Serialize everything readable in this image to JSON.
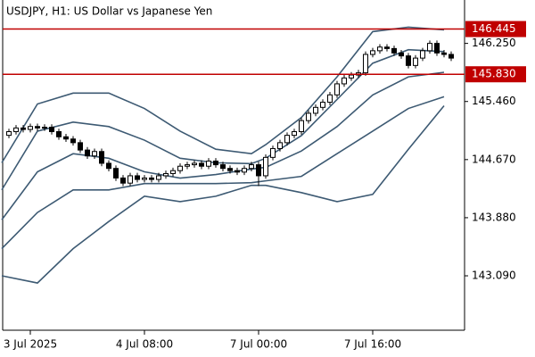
{
  "chart_data": {
    "type": "candlestick",
    "title": "USDJPY, H1:  US Dollar vs Japanese Yen",
    "categories": [
      null,
      null,
      null,
      "3 Jul 2025",
      null,
      null,
      null,
      null,
      null,
      null,
      null,
      null,
      null,
      null,
      null,
      null,
      null,
      null,
      null,
      "4 Jul 08:00",
      null,
      null,
      null,
      null,
      null,
      null,
      null,
      null,
      null,
      null,
      null,
      null,
      null,
      null,
      null,
      "7 Jul 00:00",
      null,
      null,
      null,
      null,
      null,
      null,
      null,
      null,
      null,
      null,
      null,
      null,
      null,
      null,
      null,
      "7 Jul 16:00",
      null,
      null,
      null,
      null,
      null,
      null,
      null,
      null,
      null,
      null,
      null
    ],
    "open": [
      145.0,
      145.05,
      145.1,
      145.08,
      145.12,
      145.1,
      145.11,
      145.05,
      144.98,
      144.95,
      144.9,
      144.8,
      144.72,
      144.78,
      144.62,
      144.55,
      144.42,
      144.35,
      144.45,
      144.4,
      144.42,
      144.4,
      144.45,
      144.48,
      144.52,
      144.58,
      144.6,
      144.62,
      144.58,
      144.65,
      144.6,
      144.55,
      144.52,
      144.5,
      144.55,
      144.6,
      144.45,
      144.7,
      144.82,
      144.9,
      145.0,
      145.05,
      145.2,
      145.3,
      145.38,
      145.45,
      145.55,
      145.7,
      145.78,
      145.82,
      145.85,
      146.1,
      146.15,
      146.2,
      146.18,
      146.12,
      146.08,
      145.95,
      146.05,
      146.15,
      146.25,
      146.12,
      146.1
    ],
    "high": [
      145.09,
      145.14,
      145.14,
      145.16,
      145.16,
      145.15,
      145.15,
      145.09,
      145.02,
      144.99,
      144.94,
      144.84,
      144.82,
      144.82,
      144.66,
      144.59,
      144.46,
      144.49,
      144.49,
      144.46,
      144.46,
      144.49,
      144.52,
      144.56,
      144.62,
      144.64,
      144.66,
      144.66,
      144.69,
      144.69,
      144.64,
      144.59,
      144.56,
      144.59,
      144.64,
      144.64,
      144.74,
      144.86,
      144.94,
      145.04,
      145.09,
      145.24,
      145.34,
      145.42,
      145.49,
      145.59,
      145.74,
      145.82,
      145.86,
      145.89,
      146.14,
      146.19,
      146.24,
      146.24,
      146.22,
      146.16,
      146.12,
      146.09,
      146.19,
      146.29,
      146.29,
      146.16,
      146.14
    ],
    "low": [
      144.96,
      145.01,
      145.04,
      145.04,
      145.06,
      145.06,
      145.01,
      144.94,
      144.91,
      144.86,
      144.76,
      144.68,
      144.68,
      144.58,
      144.51,
      144.38,
      144.31,
      144.31,
      144.36,
      144.36,
      144.36,
      144.36,
      144.41,
      144.44,
      144.48,
      144.54,
      144.56,
      144.54,
      144.54,
      144.56,
      144.51,
      144.48,
      144.46,
      144.46,
      144.51,
      144.31,
      144.41,
      144.66,
      144.78,
      144.86,
      144.96,
      145.01,
      145.16,
      145.26,
      145.34,
      145.41,
      145.51,
      145.66,
      145.74,
      145.78,
      145.81,
      146.06,
      146.11,
      146.14,
      146.08,
      146.04,
      145.91,
      145.91,
      146.01,
      146.11,
      146.08,
      146.06,
      146.01
    ],
    "close": [
      145.05,
      145.1,
      145.08,
      145.12,
      145.1,
      145.11,
      145.05,
      144.98,
      144.95,
      144.9,
      144.8,
      144.72,
      144.78,
      144.62,
      144.55,
      144.42,
      144.35,
      144.45,
      144.4,
      144.42,
      144.4,
      144.45,
      144.48,
      144.52,
      144.58,
      144.6,
      144.62,
      144.58,
      144.65,
      144.6,
      144.55,
      144.52,
      144.5,
      144.55,
      144.6,
      144.45,
      144.7,
      144.82,
      144.9,
      145.0,
      145.05,
      145.2,
      145.3,
      145.38,
      145.45,
      145.55,
      145.7,
      145.78,
      145.82,
      145.85,
      146.1,
      146.15,
      146.2,
      146.18,
      146.12,
      146.08,
      145.95,
      146.05,
      146.15,
      146.25,
      146.12,
      146.1,
      146.05
    ],
    "up_color": "#ffffff",
    "down_color": "#000000",
    "band_color": "#3d5a73",
    "bands": [
      {
        "x": [
          -1,
          4,
          9,
          14,
          19,
          24,
          29,
          34,
          36,
          41,
          46,
          51,
          56,
          61
        ],
        "values": [
          144.627,
          145.426,
          145.574,
          145.574,
          145.365,
          145.057,
          144.811,
          144.75,
          144.873,
          145.242,
          145.795,
          146.41,
          146.471,
          146.434
        ]
      },
      {
        "x": [
          -1,
          4,
          9,
          14,
          19,
          24,
          29,
          34,
          36,
          41,
          46,
          51,
          56,
          61
        ],
        "values": [
          144.258,
          145.057,
          145.18,
          145.119,
          144.934,
          144.688,
          144.627,
          144.615,
          144.688,
          144.996,
          145.488,
          145.98,
          146.164,
          146.139
        ]
      },
      {
        "x": [
          -1,
          4,
          9,
          14,
          19,
          24,
          29,
          34,
          36,
          41,
          46,
          51,
          56,
          61
        ],
        "values": [
          143.852,
          144.504,
          144.75,
          144.688,
          144.504,
          144.418,
          144.467,
          144.541,
          144.565,
          144.787,
          145.119,
          145.549,
          145.795,
          145.857
        ]
      },
      {
        "x": [
          -1,
          4,
          9,
          14,
          19,
          24,
          29,
          34,
          36,
          41,
          46,
          51,
          56,
          61
        ],
        "values": [
          143.459,
          143.951,
          144.258,
          144.258,
          144.344,
          144.344,
          144.344,
          144.356,
          144.381,
          144.442,
          144.75,
          145.057,
          145.365,
          145.525
        ]
      },
      {
        "x": [
          -1,
          4,
          9,
          14,
          19,
          24,
          29,
          34,
          36,
          41,
          46,
          51,
          56,
          61
        ],
        "values": [
          143.09,
          142.992,
          143.459,
          143.828,
          144.172,
          144.098,
          144.172,
          144.32,
          144.32,
          144.221,
          144.098,
          144.197,
          144.811,
          145.402
        ]
      }
    ],
    "levels": [
      {
        "value": 146.445,
        "label": "146.445"
      },
      {
        "value": 145.83,
        "label": "145.830"
      }
    ],
    "level_color": "#c00000",
    "ylim": [
      142.35,
      146.84
    ],
    "yticks": [
      {
        "value": 146.25,
        "label": "146.250"
      },
      {
        "value": 145.46,
        "label": "145.460"
      },
      {
        "value": 144.67,
        "label": "144.670"
      },
      {
        "value": 143.88,
        "label": "143.880"
      },
      {
        "value": 143.09,
        "label": "143.090"
      }
    ]
  }
}
